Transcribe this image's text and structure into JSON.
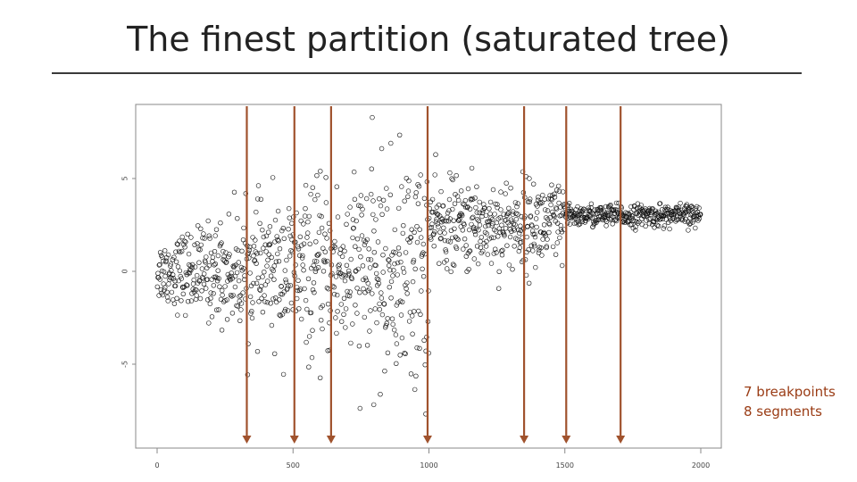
{
  "slide": {
    "title": "The finest partition (saturated tree)",
    "note_line1": "7 breakpoints",
    "note_line2": "8 segments"
  },
  "colors": {
    "breakpoint_line": "#a0522d",
    "note_text": "#9a3c15",
    "point_stroke": "#111111",
    "plot_border": "#888888"
  },
  "chart_data": {
    "type": "scatter",
    "title": "",
    "xlabel": "",
    "ylabel": "",
    "xlim": [
      -50,
      2080
    ],
    "ylim": [
      -9.5,
      9
    ],
    "x_ticks": [
      0,
      500,
      1000,
      1500,
      2000
    ],
    "y_ticks": [
      -5,
      0,
      5
    ],
    "n_points": 2000,
    "segments": [
      {
        "x_start": 0,
        "x_end": 1000,
        "mean": 0,
        "noise_sd": [
          0.8,
          3.2
        ],
        "description": "noise grows with x"
      },
      {
        "x_start": 1000,
        "x_end": 1500,
        "mean": 2.5,
        "noise_sd": 1.2
      },
      {
        "x_start": 1500,
        "x_end": 2000,
        "mean": 3,
        "noise_sd": 0.3
      }
    ],
    "breakpoints": [
      330,
      505,
      640,
      995,
      1350,
      1505,
      1705
    ],
    "breakpoint_count": 7,
    "segment_count": 8
  }
}
